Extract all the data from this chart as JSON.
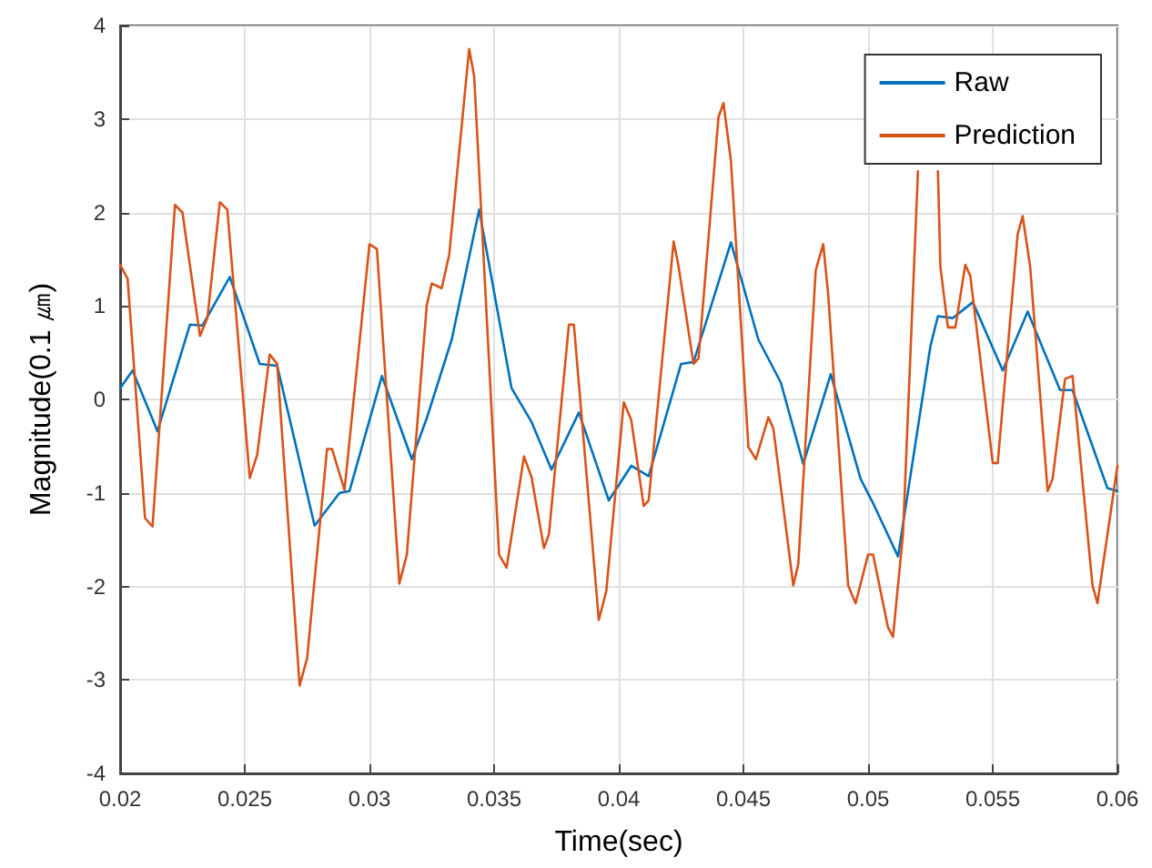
{
  "chart_data": {
    "type": "line",
    "xlabel": "Time(sec)",
    "ylabel": "Magnitude(0.1 ㎛)",
    "xlim": [
      0.02,
      0.06
    ],
    "xticks": [
      0.02,
      0.025,
      0.03,
      0.035,
      0.04,
      0.045,
      0.05,
      0.055,
      0.06
    ],
    "ylim": [
      -4,
      4
    ],
    "yticks": [
      -4,
      -3,
      -2,
      -1,
      0,
      1,
      2,
      3,
      4
    ],
    "grid": true,
    "legend": "top right",
    "marker": "none",
    "line_style": "solid",
    "series": [
      {
        "name": "Raw",
        "color": "#0072bd",
        "x": [
          0.02,
          0.0205,
          0.0215,
          0.0228,
          0.0233,
          0.0244,
          0.0256,
          0.0263,
          0.0278,
          0.0288,
          0.0292,
          0.0305,
          0.0317,
          0.0323,
          0.0333,
          0.0344,
          0.0357,
          0.0365,
          0.0373,
          0.0384,
          0.0396,
          0.0405,
          0.0412,
          0.0425,
          0.043,
          0.0445,
          0.0456,
          0.0465,
          0.0474,
          0.0485,
          0.0497,
          0.0502,
          0.0512,
          0.0525,
          0.0528,
          0.0534,
          0.0542,
          0.0554,
          0.0564,
          0.0577,
          0.0582,
          0.0596,
          0.06
        ],
        "values": [
          0.12,
          0.31,
          -0.34,
          0.8,
          0.79,
          1.31,
          0.38,
          0.36,
          -1.35,
          -1.0,
          -0.98,
          0.25,
          -0.64,
          -0.2,
          0.64,
          2.03,
          0.12,
          -0.24,
          -0.75,
          -0.14,
          -1.08,
          -0.71,
          -0.82,
          0.38,
          0.4,
          1.68,
          0.64,
          0.18,
          -0.69,
          0.27,
          -0.85,
          -1.11,
          -1.68,
          0.57,
          0.89,
          0.87,
          1.04,
          0.31,
          0.94,
          0.1,
          0.1,
          -0.95,
          -0.98
        ]
      },
      {
        "name": "Prediction",
        "color": "#d95319",
        "x": [
          0.02,
          0.0203,
          0.021,
          0.0213,
          0.0222,
          0.0225,
          0.0232,
          0.0235,
          0.024,
          0.0243,
          0.0252,
          0.0255,
          0.026,
          0.0263,
          0.0272,
          0.0275,
          0.0283,
          0.0285,
          0.029,
          0.03,
          0.0303,
          0.0312,
          0.0315,
          0.0323,
          0.0325,
          0.0329,
          0.0332,
          0.034,
          0.0342,
          0.0352,
          0.0355,
          0.0362,
          0.0365,
          0.037,
          0.0372,
          0.038,
          0.0382,
          0.0392,
          0.0395,
          0.0402,
          0.0405,
          0.041,
          0.0412,
          0.0422,
          0.0424,
          0.043,
          0.0432,
          0.044,
          0.0442,
          0.0445,
          0.0452,
          0.0455,
          0.046,
          0.0462,
          0.047,
          0.0472,
          0.0479,
          0.0482,
          0.0484,
          0.0492,
          0.0495,
          0.05,
          0.0502,
          0.0508,
          0.051,
          0.0514,
          0.052,
          0.0524,
          0.0528,
          0.0529,
          0.0532,
          0.0535,
          0.0539,
          0.0541,
          0.055,
          0.0552,
          0.056,
          0.0562,
          0.0565,
          0.0572,
          0.0574,
          0.0579,
          0.0582,
          0.059,
          0.0592,
          0.06
        ],
        "values": [
          1.44,
          1.29,
          -1.27,
          -1.36,
          2.08,
          2.0,
          0.68,
          0.87,
          2.11,
          2.03,
          -0.84,
          -0.59,
          0.48,
          0.38,
          -3.06,
          -2.77,
          -0.53,
          -0.53,
          -0.97,
          1.66,
          1.61,
          -1.97,
          -1.66,
          1.01,
          1.24,
          1.19,
          1.55,
          3.75,
          3.46,
          -1.66,
          -1.8,
          -0.61,
          -0.83,
          -1.59,
          -1.44,
          0.8,
          0.8,
          -2.36,
          -2.05,
          -0.03,
          -0.22,
          -1.14,
          -1.08,
          1.69,
          1.42,
          0.38,
          0.44,
          3.02,
          3.17,
          2.55,
          -0.51,
          -0.64,
          -0.19,
          -0.31,
          -1.99,
          -1.76,
          1.38,
          1.66,
          1.12,
          -1.99,
          -2.18,
          -1.66,
          -1.66,
          -2.44,
          -2.54,
          -1.44,
          2.44,
          null,
          2.44,
          1.42,
          0.77,
          0.77,
          1.44,
          1.32,
          -0.68,
          -0.68,
          1.77,
          1.96,
          1.42,
          -0.98,
          -0.85,
          0.22,
          0.25,
          -1.99,
          -2.18,
          -0.71
        ]
      }
    ]
  }
}
